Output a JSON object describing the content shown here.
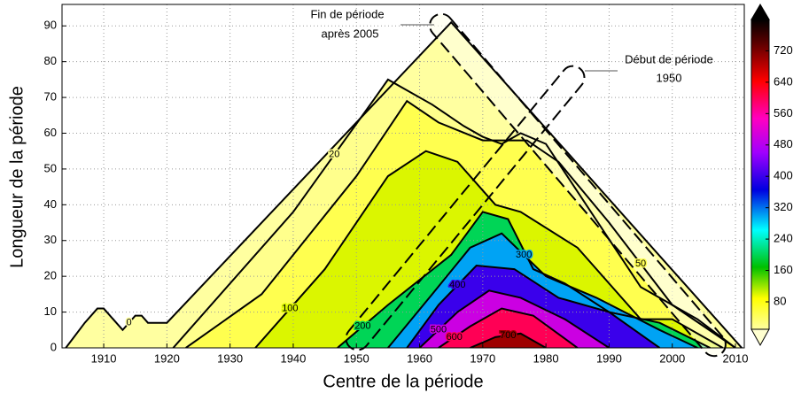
{
  "chart_data": {
    "type": "contour",
    "xlabel": "Centre de la période",
    "ylabel": "Longueur de la période",
    "xlim": [
      1903.4,
      2011.4
    ],
    "xticks": [
      1910,
      1920,
      1930,
      1940,
      1950,
      1960,
      1970,
      1980,
      1990,
      2000,
      2010
    ],
    "ylim": [
      0,
      96
    ],
    "yticks": [
      0,
      10,
      20,
      30,
      40,
      50,
      60,
      70,
      80,
      90
    ],
    "grid": true,
    "clim": [
      10,
      800
    ],
    "cticks": [
      80,
      160,
      240,
      320,
      400,
      480,
      560,
      640,
      720
    ],
    "contours": [
      {
        "level": 0,
        "x": [
          1904,
          1907,
          1909,
          1910,
          1913,
          1915,
          1916,
          1917,
          1920,
          1965,
          2011
        ],
        "y": [
          0,
          7,
          11,
          11,
          5,
          9,
          9,
          7,
          7,
          91,
          0
        ]
      },
      {
        "level": 20,
        "x": [
          1921,
          1940,
          1953,
          1955,
          1957,
          1962,
          1967,
          1970,
          1973,
          1976,
          1980,
          1995,
          2004,
          2010
        ],
        "y": [
          0,
          38,
          70,
          75,
          73,
          68,
          62,
          59,
          57,
          60,
          57,
          17,
          8,
          0
        ]
      },
      {
        "level": 50,
        "x": [
          1923,
          1935,
          1950,
          1958,
          1963,
          1970,
          1977,
          1982,
          1990,
          2000,
          2005,
          2010
        ],
        "y": [
          0,
          15,
          48,
          69,
          63,
          58,
          58,
          52,
          35,
          12,
          6,
          0
        ]
      },
      {
        "level": 100,
        "x": [
          1934,
          1945,
          1955,
          1961,
          1966,
          1972,
          1976,
          1985,
          1995,
          2000,
          2008
        ],
        "y": [
          0,
          22,
          48,
          55,
          52,
          40,
          38,
          28,
          8,
          8,
          0
        ]
      },
      {
        "level": 200,
        "x": [
          1947,
          1955,
          1965,
          1970,
          1974,
          1978,
          1983,
          1990,
          1998,
          2006
        ],
        "y": [
          0,
          12,
          26,
          38,
          36,
          22,
          18,
          10,
          7,
          0
        ]
      },
      {
        "level": 300,
        "x": [
          1955,
          1962,
          1968,
          1973,
          1980,
          1988,
          1998,
          2004
        ],
        "y": [
          0,
          15,
          28,
          32,
          20,
          14,
          5,
          0
        ]
      },
      {
        "level": 400,
        "x": [
          1958,
          1963,
          1969,
          1975,
          1982,
          1990,
          1998
        ],
        "y": [
          0,
          12,
          23,
          22,
          14,
          10,
          0
        ]
      },
      {
        "level": 500,
        "x": [
          1960,
          1966,
          1971,
          1976,
          1983,
          1990
        ],
        "y": [
          0,
          10,
          16,
          14,
          8,
          0
        ]
      },
      {
        "level": 600,
        "x": [
          1963,
          1968,
          1973,
          1978,
          1985
        ],
        "y": [
          0,
          6,
          11,
          9,
          0
        ]
      },
      {
        "level": 700,
        "x": [
          1968,
          1972,
          1976,
          1980
        ],
        "y": [
          0,
          3,
          4,
          0
        ]
      }
    ],
    "annotations": [
      "Fin de période",
      "après 2005",
      "Début de période",
      "1950"
    ]
  }
}
